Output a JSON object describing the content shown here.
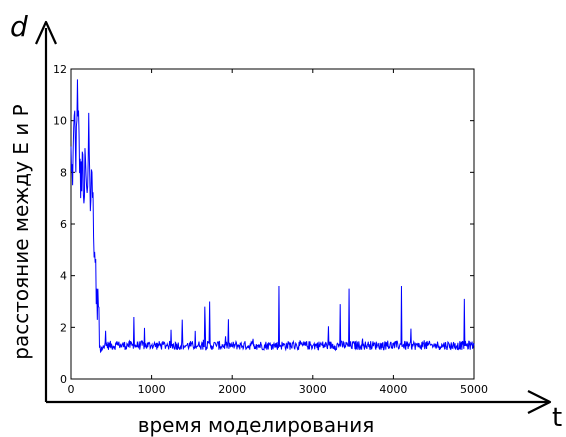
{
  "chart_data": {
    "type": "line",
    "title": "",
    "xlabel": "время моделирования",
    "ylabel": "расстояние между E и P",
    "axis_symbol_y": "d",
    "axis_symbol_x": "t",
    "xlim": [
      0,
      5000
    ],
    "ylim": [
      0,
      12
    ],
    "xticks": [
      0,
      1000,
      2000,
      3000,
      4000,
      5000
    ],
    "yticks": [
      0,
      2,
      4,
      6,
      8,
      10,
      12
    ],
    "grid": false,
    "legend": "none",
    "line_color": "#0000ff",
    "series": [
      {
        "x": [
          0,
          20,
          40,
          60,
          80,
          100,
          120,
          140,
          160,
          180,
          200,
          220,
          240,
          260,
          280,
          300,
          320,
          340,
          360,
          380,
          400,
          500,
          600,
          700,
          780,
          800,
          900,
          1000,
          1100,
          1200,
          1300,
          1380,
          1400,
          1500,
          1600,
          1660,
          1700,
          1720,
          1800,
          1900,
          2000,
          2100,
          2200,
          2300,
          2400,
          2500,
          2580,
          2600,
          2700,
          2800,
          2900,
          3000,
          3100,
          3200,
          3300,
          3340,
          3400,
          3450,
          3500,
          3600,
          3700,
          3800,
          3900,
          4000,
          4100,
          4200,
          4300,
          4400,
          4500,
          4600,
          4700,
          4800,
          4880,
          4900,
          5000
        ],
        "y": [
          9.0,
          7.5,
          10.2,
          8.0,
          11.6,
          9.5,
          7.0,
          8.8,
          6.8,
          8.5,
          7.2,
          10.3,
          6.5,
          8.0,
          5.5,
          4.5,
          3.5,
          2.8,
          1.3,
          1.25,
          1.3,
          1.35,
          1.3,
          1.35,
          2.4,
          1.3,
          1.4,
          1.3,
          1.35,
          1.3,
          1.4,
          2.3,
          1.3,
          1.35,
          1.3,
          2.8,
          1.4,
          3.0,
          1.3,
          1.35,
          1.3,
          1.4,
          1.3,
          1.35,
          1.3,
          1.35,
          3.6,
          1.3,
          1.4,
          1.3,
          1.35,
          1.3,
          1.4,
          1.3,
          1.35,
          2.9,
          1.3,
          3.5,
          1.4,
          1.3,
          1.35,
          1.3,
          1.4,
          1.3,
          3.6,
          1.3,
          1.35,
          1.4,
          1.3,
          1.35,
          1.3,
          1.4,
          3.1,
          1.3,
          1.3
        ]
      }
    ]
  }
}
